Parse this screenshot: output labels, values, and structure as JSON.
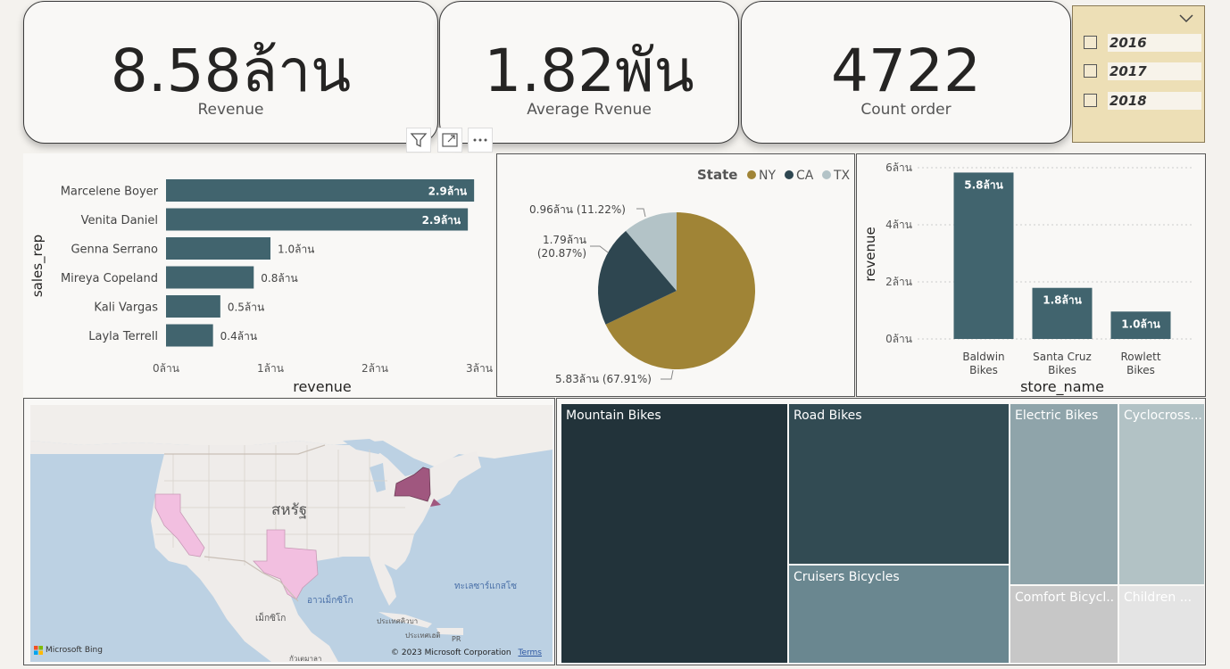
{
  "kpis": [
    {
      "value": "8.58ล้าน",
      "label": "Revenue"
    },
    {
      "value": "1.82พัน",
      "label": "Average Rvenue"
    },
    {
      "value": "4722",
      "label": "Count order"
    }
  ],
  "year_slicer": {
    "options": [
      "2016",
      "2017",
      "2018"
    ]
  },
  "toolbar": {
    "icons": [
      "filter-icon",
      "focus-mode-icon",
      "more-options-icon"
    ]
  },
  "sales_rep_chart": {
    "chart_data": {
      "type": "bar",
      "orientation": "horizontal",
      "categories": [
        "Marcelene Boyer",
        "Venita Daniel",
        "Genna Serrano",
        "Mireya Copeland",
        "Kali Vargas",
        "Layla Terrell"
      ],
      "values": [
        2.95,
        2.89,
        1.0,
        0.84,
        0.52,
        0.45
      ],
      "data_labels": [
        "2.9ล้าน",
        "2.9ล้าน",
        "1.0ล้าน",
        "0.8ล้าน",
        "0.5ล้าน",
        "0.4ล้าน"
      ],
      "xlabel": "revenue",
      "ylabel": "sales_rep",
      "xlim": [
        0,
        3
      ],
      "xticks": [
        "0ล้าน",
        "1ล้าน",
        "2ล้าน",
        "3ล้าน"
      ],
      "color": "#41646e"
    }
  },
  "state_pie": {
    "chart_data": {
      "type": "pie",
      "legend_title": "State",
      "legend_position": "top-right",
      "slices": [
        {
          "name": "NY",
          "value": 5.83,
          "label": "5.83ล้าน (67.91%)",
          "color": "#a08436"
        },
        {
          "name": "CA",
          "value": 1.79,
          "label_line1": "1.79ล้าน",
          "label_line2": "(20.87%)",
          "color": "#2e4650"
        },
        {
          "name": "TX",
          "value": 0.96,
          "label": "0.96ล้าน (11.22%)",
          "color": "#b3c3c7"
        }
      ]
    }
  },
  "store_chart": {
    "chart_data": {
      "type": "bar",
      "categories": [
        [
          "Baldwin",
          "Bikes"
        ],
        [
          "Santa Cruz",
          "Bikes"
        ],
        [
          "Rowlett",
          "Bikes"
        ]
      ],
      "values": [
        5.83,
        1.79,
        0.96
      ],
      "data_labels": [
        "5.8ล้าน",
        "1.8ล้าน",
        "1.0ล้าน"
      ],
      "xlabel": "store_name",
      "ylabel": "revenue",
      "ylim": [
        0,
        6
      ],
      "yticks": [
        "0ล้าน",
        "2ล้าน",
        "4ล้าน",
        "6ล้าน"
      ],
      "grid": true,
      "color": "#41646e"
    }
  },
  "map": {
    "country_label": "สหรัฐ",
    "gulf_label": "อาวเม็กซิโก",
    "mexico_label": "เม็กซิโก",
    "sargasso_label": "ทะเลซาร์แกสโซ",
    "cuba_label": "ประเทศคิวบา",
    "haiti_label": "ประเทศเฮติ",
    "pr_label": "PR",
    "guatemala_label": "กัวเตมาลา",
    "bing_label": "Microsoft Bing",
    "copyright": "© 2023 Microsoft Corporation",
    "terms": "Terms",
    "highlight_colors": {
      "NY": "#a0577f",
      "CA": "#f2bfe0",
      "TX": "#f2bfe0"
    }
  },
  "treemap": {
    "chart_data": {
      "type": "treemap",
      "items": [
        {
          "name": "Mountain Bikes",
          "color": "#22333a"
        },
        {
          "name": "Road Bikes",
          "color": "#324b53"
        },
        {
          "name": "Cruisers Bicycles",
          "color": "#6a8790"
        },
        {
          "name": "Electric Bikes",
          "color": "#8fa4aa"
        },
        {
          "name": "Cyclocross...",
          "color": "#b2c2c5"
        },
        {
          "name": "Comfort Bicycl...",
          "color": "#c7c7c7"
        },
        {
          "name": "Children ...",
          "color": "#e4e4e4"
        }
      ]
    }
  }
}
